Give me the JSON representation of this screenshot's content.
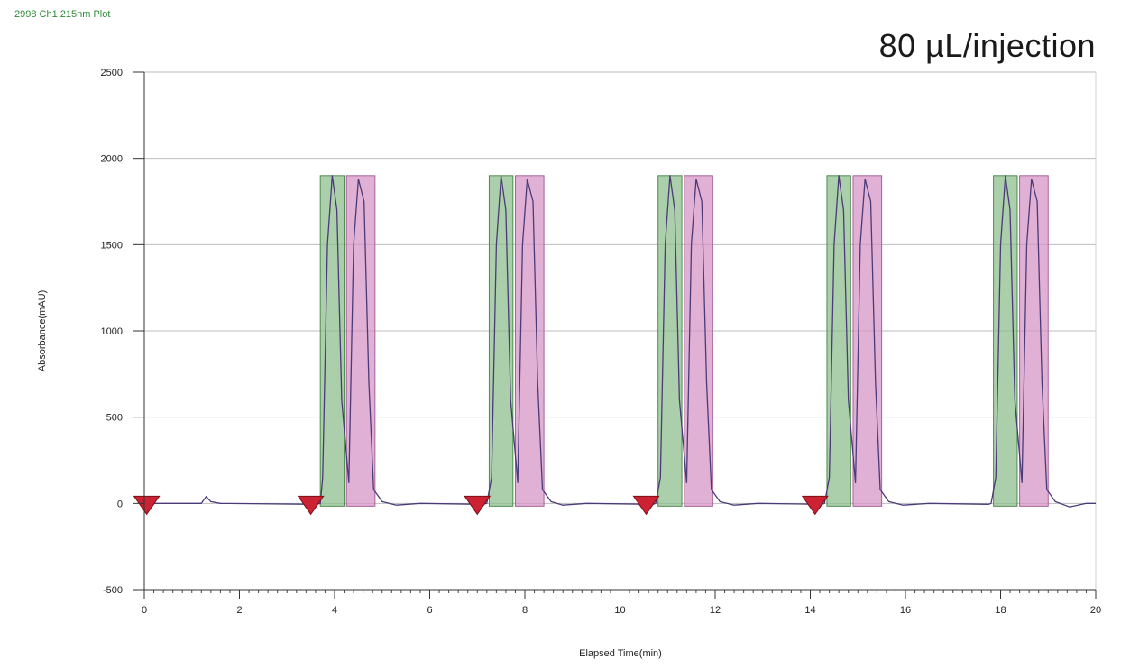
{
  "header": {
    "plot_label": "2998 Ch1 215nm Plot",
    "title": "80 µL/injection"
  },
  "chart_data": {
    "type": "line",
    "xlabel": "Elapsed Time(min)",
    "ylabel": "Absorbance(mAU)",
    "xlim": [
      0,
      20
    ],
    "ylim": [
      -500,
      2500
    ],
    "x_ticks": [
      0,
      2,
      4,
      6,
      8,
      10,
      12,
      14,
      16,
      18,
      20
    ],
    "y_ticks": [
      -500,
      0,
      500,
      1000,
      1500,
      2000,
      2500
    ],
    "grid": "horizontal",
    "series": [
      {
        "color": "#4b3a78",
        "points": [
          [
            0,
            0
          ],
          [
            1.2,
            0
          ],
          [
            1.3,
            40
          ],
          [
            1.4,
            10
          ],
          [
            1.6,
            0
          ],
          [
            3.6,
            -5
          ],
          [
            3.7,
            0
          ],
          [
            3.75,
            150
          ],
          [
            3.85,
            1500
          ],
          [
            3.95,
            1900
          ],
          [
            4.05,
            1700
          ],
          [
            4.15,
            600
          ],
          [
            4.3,
            120
          ],
          [
            4.4,
            1500
          ],
          [
            4.5,
            1880
          ],
          [
            4.62,
            1750
          ],
          [
            4.72,
            700
          ],
          [
            4.82,
            80
          ],
          [
            5.0,
            10
          ],
          [
            5.3,
            -10
          ],
          [
            5.8,
            0
          ],
          [
            7.1,
            -5
          ],
          [
            7.2,
            0
          ],
          [
            7.3,
            150
          ],
          [
            7.4,
            1500
          ],
          [
            7.5,
            1900
          ],
          [
            7.6,
            1700
          ],
          [
            7.7,
            600
          ],
          [
            7.85,
            120
          ],
          [
            7.95,
            1500
          ],
          [
            8.05,
            1880
          ],
          [
            8.17,
            1750
          ],
          [
            8.27,
            700
          ],
          [
            8.37,
            80
          ],
          [
            8.55,
            10
          ],
          [
            8.8,
            -10
          ],
          [
            9.3,
            0
          ],
          [
            10.7,
            -5
          ],
          [
            10.75,
            0
          ],
          [
            10.85,
            150
          ],
          [
            10.95,
            1500
          ],
          [
            11.05,
            1900
          ],
          [
            11.15,
            1700
          ],
          [
            11.25,
            600
          ],
          [
            11.4,
            120
          ],
          [
            11.5,
            1500
          ],
          [
            11.6,
            1880
          ],
          [
            11.72,
            1750
          ],
          [
            11.82,
            700
          ],
          [
            11.92,
            80
          ],
          [
            12.1,
            10
          ],
          [
            12.4,
            -10
          ],
          [
            12.9,
            0
          ],
          [
            14.25,
            -5
          ],
          [
            14.3,
            0
          ],
          [
            14.4,
            150
          ],
          [
            14.5,
            1500
          ],
          [
            14.6,
            1900
          ],
          [
            14.7,
            1700
          ],
          [
            14.8,
            600
          ],
          [
            14.95,
            120
          ],
          [
            15.05,
            1500
          ],
          [
            15.15,
            1880
          ],
          [
            15.27,
            1750
          ],
          [
            15.37,
            700
          ],
          [
            15.47,
            80
          ],
          [
            15.65,
            10
          ],
          [
            15.95,
            -10
          ],
          [
            16.5,
            0
          ],
          [
            17.75,
            -5
          ],
          [
            17.8,
            0
          ],
          [
            17.9,
            150
          ],
          [
            18.0,
            1500
          ],
          [
            18.1,
            1900
          ],
          [
            18.2,
            1700
          ],
          [
            18.3,
            600
          ],
          [
            18.45,
            120
          ],
          [
            18.55,
            1500
          ],
          [
            18.65,
            1880
          ],
          [
            18.77,
            1750
          ],
          [
            18.87,
            700
          ],
          [
            18.97,
            80
          ],
          [
            19.15,
            10
          ],
          [
            19.45,
            -20
          ],
          [
            19.8,
            0
          ],
          [
            20,
            0
          ]
        ]
      }
    ],
    "fraction_regions": [
      {
        "x0": 3.7,
        "x1": 4.2,
        "y_top": 1900,
        "color": "#8dbf8d"
      },
      {
        "x0": 4.25,
        "x1": 4.85,
        "y_top": 1900,
        "color": "#d597c6"
      },
      {
        "x0": 7.25,
        "x1": 7.75,
        "y_top": 1900,
        "color": "#8dbf8d"
      },
      {
        "x0": 7.8,
        "x1": 8.4,
        "y_top": 1900,
        "color": "#d597c6"
      },
      {
        "x0": 10.8,
        "x1": 11.3,
        "y_top": 1900,
        "color": "#8dbf8d"
      },
      {
        "x0": 11.35,
        "x1": 11.95,
        "y_top": 1900,
        "color": "#d597c6"
      },
      {
        "x0": 14.35,
        "x1": 14.85,
        "y_top": 1900,
        "color": "#8dbf8d"
      },
      {
        "x0": 14.9,
        "x1": 15.5,
        "y_top": 1900,
        "color": "#d597c6"
      },
      {
        "x0": 17.85,
        "x1": 18.35,
        "y_top": 1900,
        "color": "#8dbf8d"
      },
      {
        "x0": 18.4,
        "x1": 19.0,
        "y_top": 1900,
        "color": "#d597c6"
      }
    ],
    "injection_markers": [
      0.05,
      3.5,
      7.0,
      10.55,
      14.1
    ],
    "marker_color": "#cc2233"
  }
}
